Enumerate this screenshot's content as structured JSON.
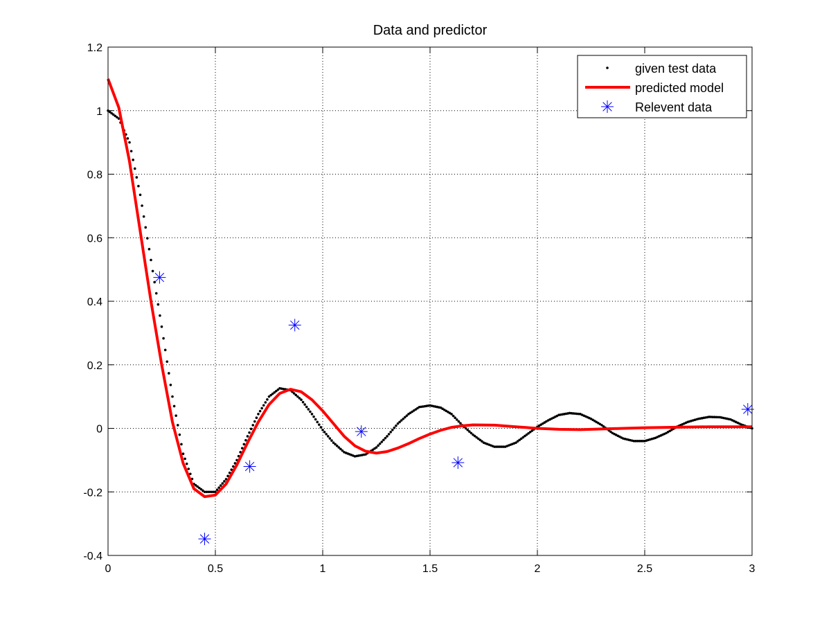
{
  "chart_data": {
    "type": "line",
    "title": "Data and predictor",
    "xlabel": "",
    "ylabel": "",
    "xlim": [
      0,
      3
    ],
    "ylim": [
      -0.4,
      1.2
    ],
    "x_ticks": [
      0,
      0.5,
      1,
      1.5,
      2,
      2.5,
      3
    ],
    "y_ticks": [
      -0.4,
      -0.2,
      0,
      0.2,
      0.4,
      0.6,
      0.8,
      1,
      1.2
    ],
    "x_tick_labels": [
      "0",
      "0.5",
      "1",
      "1.5",
      "2",
      "2.5",
      "3"
    ],
    "y_tick_labels": [
      "-0.4",
      "-0.2",
      "0",
      "0.2",
      "0.4",
      "0.6",
      "0.8",
      "1",
      "1.2"
    ],
    "grid": true,
    "grid_style": "dotted",
    "legend_position": "top-right",
    "series": [
      {
        "name": "given test data",
        "kind": "scatter",
        "marker": "dot",
        "color": "#000000",
        "points": [
          [
            0.0,
            1.0
          ],
          [
            0.05,
            0.975
          ],
          [
            0.1,
            0.9
          ],
          [
            0.15,
            0.735
          ],
          [
            0.2,
            0.53
          ],
          [
            0.25,
            0.32
          ],
          [
            0.3,
            0.1
          ],
          [
            0.35,
            -0.08
          ],
          [
            0.4,
            -0.175
          ],
          [
            0.45,
            -0.2
          ],
          [
            0.5,
            -0.2
          ],
          [
            0.55,
            -0.16
          ],
          [
            0.6,
            -0.1
          ],
          [
            0.65,
            -0.025
          ],
          [
            0.7,
            0.045
          ],
          [
            0.75,
            0.1
          ],
          [
            0.8,
            0.126
          ],
          [
            0.85,
            0.12
          ],
          [
            0.9,
            0.09
          ],
          [
            0.95,
            0.045
          ],
          [
            1.0,
            -0.005
          ],
          [
            1.05,
            -0.045
          ],
          [
            1.1,
            -0.075
          ],
          [
            1.15,
            -0.088
          ],
          [
            1.2,
            -0.082
          ],
          [
            1.25,
            -0.06
          ],
          [
            1.3,
            -0.025
          ],
          [
            1.35,
            0.015
          ],
          [
            1.4,
            0.045
          ],
          [
            1.45,
            0.067
          ],
          [
            1.5,
            0.072
          ],
          [
            1.55,
            0.065
          ],
          [
            1.6,
            0.045
          ],
          [
            1.65,
            0.01
          ],
          [
            1.7,
            -0.02
          ],
          [
            1.75,
            -0.045
          ],
          [
            1.8,
            -0.058
          ],
          [
            1.85,
            -0.058
          ],
          [
            1.9,
            -0.045
          ],
          [
            1.95,
            -0.02
          ],
          [
            2.0,
            0.005
          ],
          [
            2.05,
            0.025
          ],
          [
            2.1,
            0.042
          ],
          [
            2.15,
            0.048
          ],
          [
            2.2,
            0.045
          ],
          [
            2.25,
            0.03
          ],
          [
            2.3,
            0.01
          ],
          [
            2.35,
            -0.015
          ],
          [
            2.4,
            -0.032
          ],
          [
            2.45,
            -0.04
          ],
          [
            2.5,
            -0.04
          ],
          [
            2.55,
            -0.03
          ],
          [
            2.6,
            -0.015
          ],
          [
            2.65,
            0.005
          ],
          [
            2.7,
            0.02
          ],
          [
            2.75,
            0.03
          ],
          [
            2.8,
            0.036
          ],
          [
            2.85,
            0.035
          ],
          [
            2.9,
            0.028
          ],
          [
            2.95,
            0.012
          ],
          [
            3.0,
            0.0
          ]
        ]
      },
      {
        "name": "predicted model",
        "kind": "line",
        "color": "#ff0000",
        "points": [
          [
            0.0,
            1.1
          ],
          [
            0.05,
            1.01
          ],
          [
            0.1,
            0.84
          ],
          [
            0.15,
            0.62
          ],
          [
            0.2,
            0.4
          ],
          [
            0.25,
            0.2
          ],
          [
            0.3,
            0.02
          ],
          [
            0.35,
            -0.11
          ],
          [
            0.4,
            -0.19
          ],
          [
            0.45,
            -0.215
          ],
          [
            0.5,
            -0.21
          ],
          [
            0.55,
            -0.175
          ],
          [
            0.6,
            -0.115
          ],
          [
            0.65,
            -0.045
          ],
          [
            0.7,
            0.02
          ],
          [
            0.75,
            0.075
          ],
          [
            0.8,
            0.11
          ],
          [
            0.85,
            0.123
          ],
          [
            0.9,
            0.115
          ],
          [
            0.95,
            0.09
          ],
          [
            1.0,
            0.055
          ],
          [
            1.05,
            0.015
          ],
          [
            1.1,
            -0.025
          ],
          [
            1.15,
            -0.055
          ],
          [
            1.2,
            -0.072
          ],
          [
            1.25,
            -0.078
          ],
          [
            1.3,
            -0.073
          ],
          [
            1.35,
            -0.062
          ],
          [
            1.4,
            -0.048
          ],
          [
            1.45,
            -0.032
          ],
          [
            1.5,
            -0.018
          ],
          [
            1.55,
            -0.006
          ],
          [
            1.6,
            0.003
          ],
          [
            1.65,
            0.008
          ],
          [
            1.7,
            0.011
          ],
          [
            1.8,
            0.01
          ],
          [
            1.9,
            0.005
          ],
          [
            2.0,
            0.0
          ],
          [
            2.1,
            -0.003
          ],
          [
            2.2,
            -0.004
          ],
          [
            2.3,
            -0.002
          ],
          [
            2.4,
            0.0
          ],
          [
            2.5,
            0.002
          ],
          [
            2.6,
            0.003
          ],
          [
            2.7,
            0.004
          ],
          [
            2.8,
            0.005
          ],
          [
            2.9,
            0.005
          ],
          [
            3.0,
            0.005
          ]
        ]
      },
      {
        "name": "Relevent data",
        "kind": "scatter",
        "marker": "asterisk",
        "color": "#0000ff",
        "points": [
          [
            0.24,
            0.475
          ],
          [
            0.45,
            -0.348
          ],
          [
            0.66,
            -0.12
          ],
          [
            0.87,
            0.325
          ],
          [
            1.18,
            -0.01
          ],
          [
            1.63,
            -0.108
          ],
          [
            2.98,
            0.06
          ]
        ]
      }
    ]
  }
}
